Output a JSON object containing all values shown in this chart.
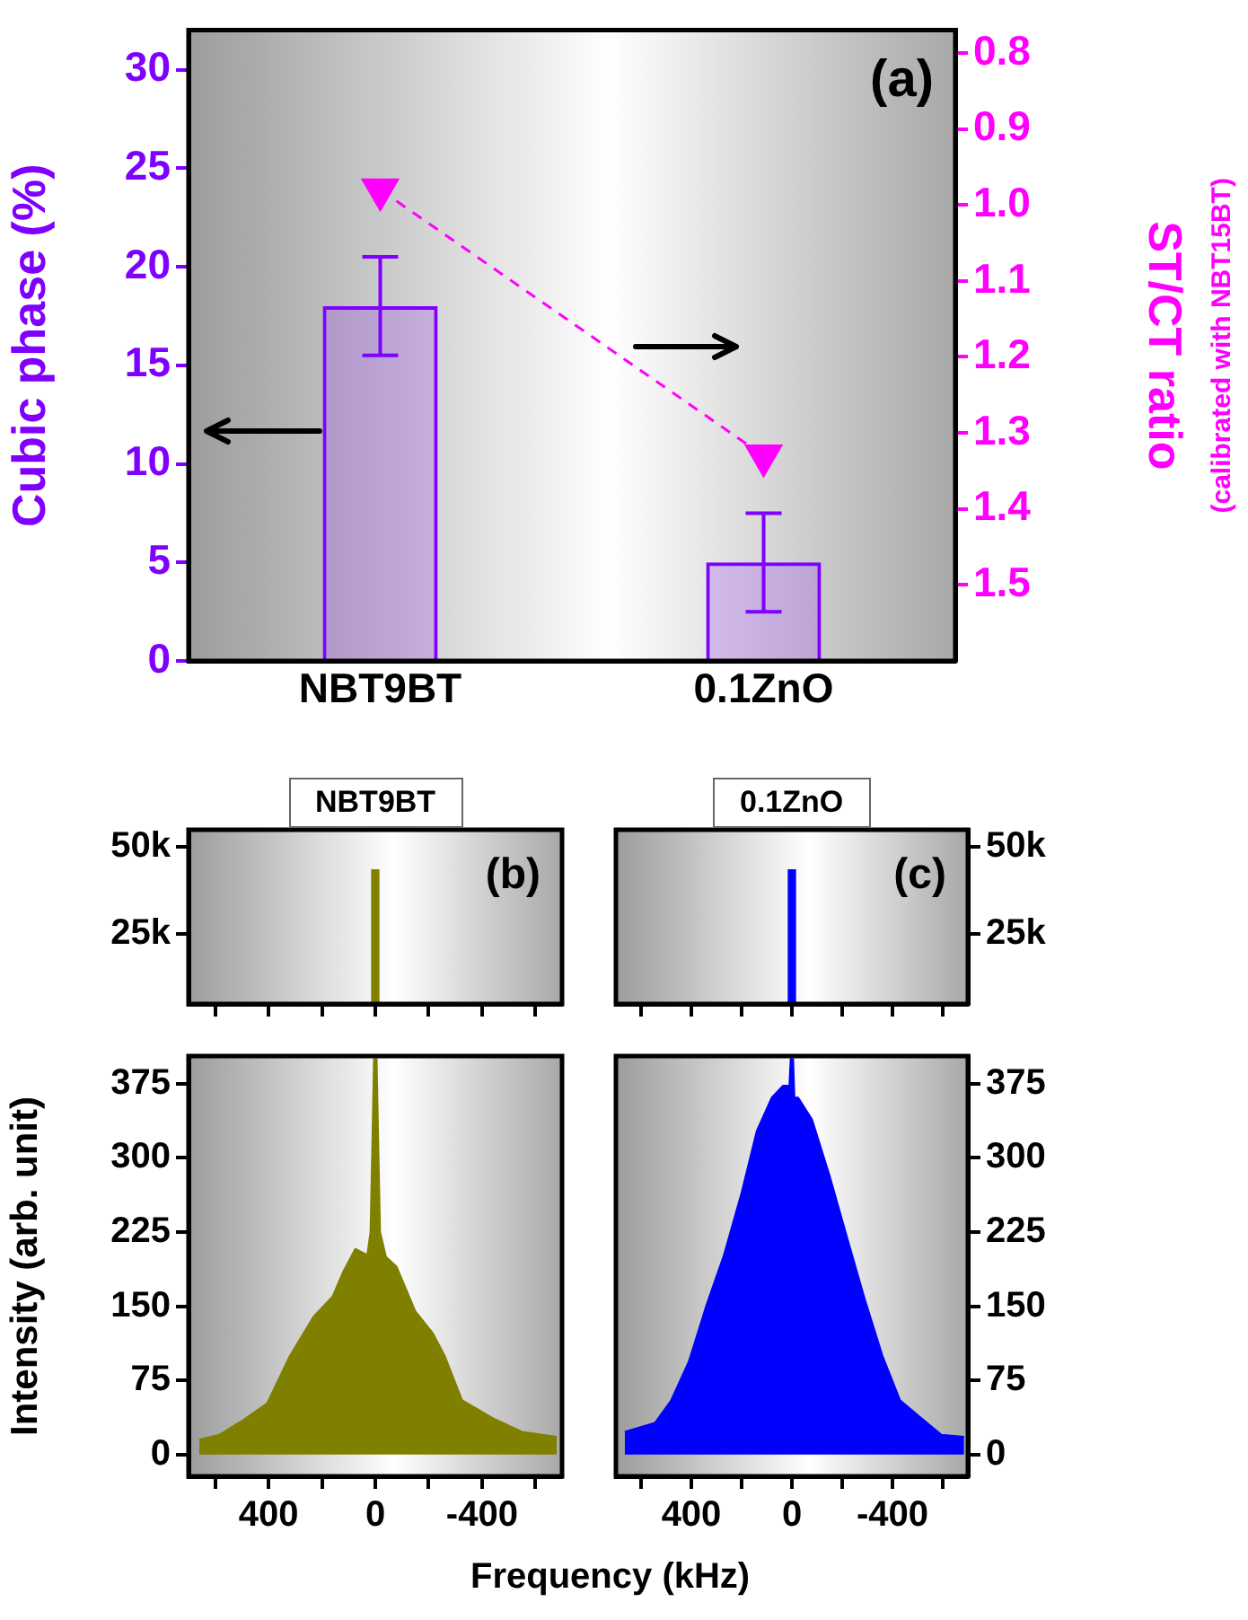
{
  "chart_data": [
    {
      "type": "bar",
      "categories": [
        "NBT9BT",
        "0.1ZnO"
      ],
      "series": [
        {
          "color": "#7f00ff",
          "values": [
            18,
            5
          ],
          "errors": [
            2.5,
            2.5
          ]
        },
        {
          "type": "line",
          "axis": "y2",
          "color": "#ff00ff",
          "values": [
            0.98,
            1.33
          ],
          "marker": "triangle",
          "line_style": "dashed"
        }
      ],
      "ylabel": "Cubic phase (%)",
      "y2label": "ST/CT ratio",
      "ylim": [
        0,
        32
      ],
      "yticks": [
        0,
        5,
        10,
        15,
        20,
        25,
        30
      ],
      "y2lim": [
        1.6,
        0.77
      ],
      "y2ticks": [
        0.8,
        0.9,
        {
          "value": 1,
          "label": "1.0"
        },
        1.1,
        1.2,
        1.3,
        1.4,
        1.5
      ],
      "annotations": [
        "(a)",
        "(calibrated with NBT15BT)"
      ]
    },
    {
      "type": "bar",
      "title": "NBT9BT",
      "series": [
        {
          "color": "#808000",
          "x": [
            0
          ],
          "values": [
            43500
          ]
        }
      ],
      "xlim": [
        700,
        -700
      ],
      "xticks": [
        {
          "value": 600,
          "label": null
        },
        400,
        {
          "value": 200,
          "label": null
        },
        0,
        {
          "value": -200,
          "label": null
        },
        -400,
        {
          "value": -600,
          "label": null
        }
      ],
      "ylim": [
        5000,
        55000
      ],
      "yticks": [
        {
          "value": 25000,
          "label": "25k"
        },
        {
          "value": 50000,
          "label": "50k"
        }
      ],
      "tick_labels": "y",
      "annotations": [
        "(b)"
      ]
    },
    {
      "type": "area",
      "series": [
        {
          "color": "#808000",
          "x": [
            660,
            585,
            495,
            405,
            320,
            230,
            160,
            120,
            75,
            30,
            18,
            11,
            5,
            -5,
            -11,
            -18,
            -40,
            -80,
            -150,
            -215,
            -260,
            -325,
            -440,
            -550,
            -680
          ],
          "values": [
            15,
            20,
            35,
            52,
            100,
            140,
            160,
            185,
            208,
            202,
            225,
            316,
            400,
            400,
            316,
            225,
            200,
            190,
            145,
            123,
            100,
            55,
            37,
            23,
            18
          ]
        }
      ],
      "xlim": [
        700,
        -700
      ],
      "xticks": [
        {
          "value": 600,
          "label": null
        },
        400,
        {
          "value": 200,
          "label": null
        },
        0,
        {
          "value": -200,
          "label": null
        },
        -400,
        {
          "value": -600,
          "label": null
        }
      ],
      "ylim": [
        -22,
        403
      ],
      "yticks": [
        0,
        75,
        150,
        225,
        300,
        375
      ],
      "ylabel": "Intensity (arb. unit)",
      "xlabel": "Frequency (kHz)"
    },
    {
      "type": "bar",
      "title": "0.1ZnO",
      "series": [
        {
          "axis": "y2",
          "color": "#0000ff",
          "x": [
            0
          ],
          "values": [
            43500
          ]
        }
      ],
      "xlim": [
        700,
        -700
      ],
      "xticks": [
        {
          "value": 600,
          "label": null
        },
        400,
        {
          "value": 200,
          "label": null
        },
        0,
        {
          "value": -200,
          "label": null
        },
        -400,
        {
          "value": -600,
          "label": null
        }
      ],
      "y2lim": [
        5000,
        55000
      ],
      "y2ticks": [
        {
          "value": 25000,
          "label": "25k"
        },
        {
          "value": 50000,
          "label": "50k"
        }
      ],
      "tick_labels": "y",
      "annotations": [
        "(c)"
      ]
    },
    {
      "type": "area",
      "series": [
        {
          "axis": "y2",
          "color": "#0000ff",
          "x": [
            665,
            545,
            480,
            410,
            340,
            270,
            200,
            140,
            80,
            35,
            10,
            5,
            -5,
            -10,
            -25,
            -80,
            -150,
            -220,
            -290,
            -360,
            -430,
            -500,
            -595,
            -685
          ],
          "values": [
            23,
            32,
            55,
            94,
            151,
            202,
            265,
            327,
            361,
            373,
            373,
            400,
            400,
            361,
            361,
            339,
            282,
            219,
            157,
            100,
            55,
            40,
            20,
            18
          ]
        }
      ],
      "xlim": [
        700,
        -700
      ],
      "xticks": [
        {
          "value": 600,
          "label": null
        },
        400,
        {
          "value": 200,
          "label": null
        },
        0,
        {
          "value": -200,
          "label": null
        },
        -400,
        {
          "value": -600,
          "label": null
        }
      ],
      "y2lim": [
        -22,
        403
      ],
      "y2ticks": [
        0,
        75,
        150,
        225,
        300,
        375
      ]
    }
  ]
}
